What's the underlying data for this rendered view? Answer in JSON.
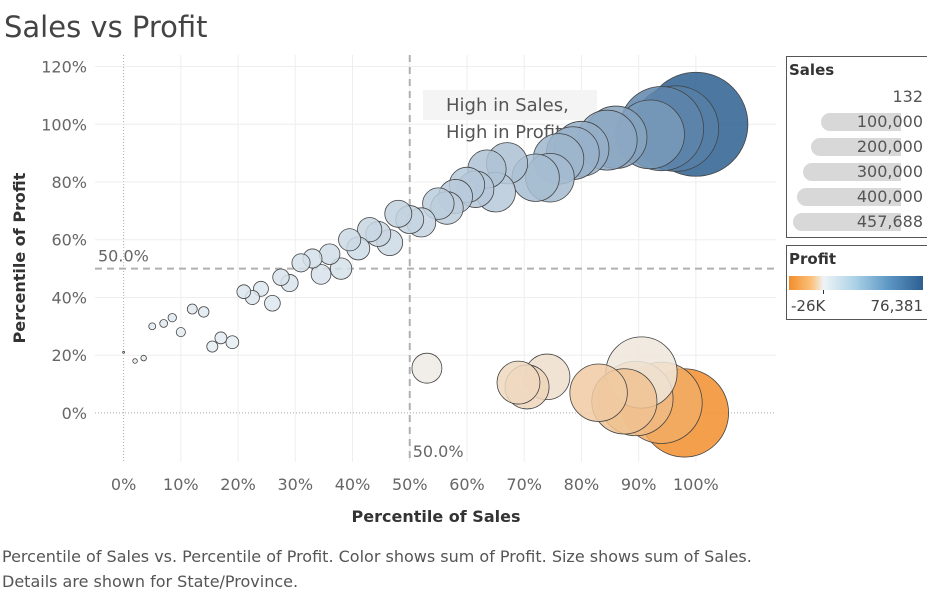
{
  "page": {
    "title": "Sales vs Profit",
    "caption": "Percentile of Sales vs. Percentile of Profit.  Color shows sum of Profit.  Size shows sum of Sales.  Details are shown for State/Province."
  },
  "legend_sales": {
    "title": "Sales",
    "values": [
      "132",
      "100,000",
      "200,000",
      "300,000",
      "400,000",
      "457,688"
    ]
  },
  "legend_profit": {
    "title": "Profit",
    "min_label": "-26K",
    "max_label": "76,381"
  },
  "chart_data": {
    "type": "scatter",
    "xlabel": "Percentile of Sales",
    "ylabel": "Percentile of Profit",
    "x_ticks": [
      "0%",
      "10%",
      "20%",
      "30%",
      "40%",
      "50%",
      "60%",
      "70%",
      "80%",
      "90%",
      "100%"
    ],
    "y_ticks": [
      "0%",
      "20%",
      "40%",
      "60%",
      "80%",
      "100%",
      "120%"
    ],
    "xlim": [
      -0.05,
      1.14
    ],
    "ylim": [
      -0.17,
      1.24
    ],
    "reference_lines": [
      {
        "axis": "x",
        "value": 0.5,
        "label": "50.0%"
      },
      {
        "axis": "y",
        "value": 0.5,
        "label": "50.0%"
      }
    ],
    "annotation": {
      "line1": "High in Sales,",
      "line2": "High in Profit"
    },
    "colors": {
      "negative": "#f28e2b",
      "mid": "#eef4f7",
      "positive": "#2d5f91"
    },
    "points": [
      {
        "x": 0.0,
        "y": 0.21,
        "sales": 132,
        "profit": 10
      },
      {
        "x": 0.02,
        "y": 0.18,
        "sales": 900,
        "profit": 50
      },
      {
        "x": 0.035,
        "y": 0.19,
        "sales": 1300,
        "profit": 80
      },
      {
        "x": 0.05,
        "y": 0.3,
        "sales": 2000,
        "profit": 150
      },
      {
        "x": 0.07,
        "y": 0.31,
        "sales": 2600,
        "profit": 180
      },
      {
        "x": 0.085,
        "y": 0.33,
        "sales": 3000,
        "profit": 200
      },
      {
        "x": 0.1,
        "y": 0.28,
        "sales": 3600,
        "profit": 130
      },
      {
        "x": 0.12,
        "y": 0.36,
        "sales": 4200,
        "profit": 260
      },
      {
        "x": 0.14,
        "y": 0.35,
        "sales": 4700,
        "profit": 230
      },
      {
        "x": 0.155,
        "y": 0.23,
        "sales": 5200,
        "profit": 60
      },
      {
        "x": 0.17,
        "y": 0.26,
        "sales": 6000,
        "profit": 100
      },
      {
        "x": 0.19,
        "y": 0.245,
        "sales": 7000,
        "profit": 90
      },
      {
        "x": 0.21,
        "y": 0.42,
        "sales": 8000,
        "profit": 400
      },
      {
        "x": 0.225,
        "y": 0.4,
        "sales": 8500,
        "profit": 370
      },
      {
        "x": 0.24,
        "y": 0.43,
        "sales": 9500,
        "profit": 430
      },
      {
        "x": 0.26,
        "y": 0.38,
        "sales": 10500,
        "profit": 330
      },
      {
        "x": 0.275,
        "y": 0.47,
        "sales": 11500,
        "profit": 600
      },
      {
        "x": 0.29,
        "y": 0.45,
        "sales": 12500,
        "profit": 560
      },
      {
        "x": 0.31,
        "y": 0.52,
        "sales": 14000,
        "profit": 900
      },
      {
        "x": 0.33,
        "y": 0.535,
        "sales": 15500,
        "profit": 1000
      },
      {
        "x": 0.345,
        "y": 0.48,
        "sales": 16500,
        "profit": 700
      },
      {
        "x": 0.36,
        "y": 0.55,
        "sales": 18000,
        "profit": 1200
      },
      {
        "x": 0.38,
        "y": 0.5,
        "sales": 19500,
        "profit": 900
      },
      {
        "x": 0.395,
        "y": 0.6,
        "sales": 21000,
        "profit": 1800
      },
      {
        "x": 0.41,
        "y": 0.57,
        "sales": 22500,
        "profit": 1500
      },
      {
        "x": 0.43,
        "y": 0.635,
        "sales": 25000,
        "profit": 2200
      },
      {
        "x": 0.445,
        "y": 0.62,
        "sales": 26500,
        "profit": 2000
      },
      {
        "x": 0.465,
        "y": 0.59,
        "sales": 28500,
        "profit": 1700
      },
      {
        "x": 0.48,
        "y": 0.69,
        "sales": 31000,
        "profit": 3000
      },
      {
        "x": 0.5,
        "y": 0.67,
        "sales": 33000,
        "profit": 2700
      },
      {
        "x": 0.52,
        "y": 0.66,
        "sales": 36000,
        "profit": 2600
      },
      {
        "x": 0.53,
        "y": 0.155,
        "sales": 38000,
        "profit": -500
      },
      {
        "x": 0.55,
        "y": 0.725,
        "sales": 42000,
        "profit": 4000
      },
      {
        "x": 0.565,
        "y": 0.71,
        "sales": 45000,
        "profit": 3700
      },
      {
        "x": 0.58,
        "y": 0.75,
        "sales": 49000,
        "profit": 4500
      },
      {
        "x": 0.6,
        "y": 0.79,
        "sales": 53000,
        "profit": 5200
      },
      {
        "x": 0.615,
        "y": 0.775,
        "sales": 57000,
        "profit": 5000
      },
      {
        "x": 0.635,
        "y": 0.845,
        "sales": 62000,
        "profit": 6500
      },
      {
        "x": 0.65,
        "y": 0.765,
        "sales": 67000,
        "profit": 4800
      },
      {
        "x": 0.67,
        "y": 0.865,
        "sales": 72000,
        "profit": 7000
      },
      {
        "x": 0.69,
        "y": 0.105,
        "sales": 78000,
        "profit": -3000
      },
      {
        "x": 0.705,
        "y": 0.09,
        "sales": 82000,
        "profit": -3500
      },
      {
        "x": 0.74,
        "y": 0.125,
        "sales": 88000,
        "profit": -2000
      },
      {
        "x": 0.72,
        "y": 0.815,
        "sales": 95000,
        "profit": 8500
      },
      {
        "x": 0.745,
        "y": 0.815,
        "sales": 100000,
        "profit": 9000
      },
      {
        "x": 0.76,
        "y": 0.88,
        "sales": 108000,
        "profit": 11000
      },
      {
        "x": 0.785,
        "y": 0.9,
        "sales": 118000,
        "profit": 12500
      },
      {
        "x": 0.8,
        "y": 0.915,
        "sales": 128000,
        "profit": 14000
      },
      {
        "x": 0.83,
        "y": 0.07,
        "sales": 140000,
        "profit": -6000
      },
      {
        "x": 0.845,
        "y": 0.945,
        "sales": 152000,
        "profit": 17000
      },
      {
        "x": 0.86,
        "y": 0.955,
        "sales": 165000,
        "profit": 19500
      },
      {
        "x": 0.875,
        "y": 0.04,
        "sales": 180000,
        "profit": -8000
      },
      {
        "x": 0.92,
        "y": 0.965,
        "sales": 200000,
        "profit": 25000
      },
      {
        "x": 0.905,
        "y": 0.14,
        "sales": 215000,
        "profit": -1000
      },
      {
        "x": 0.895,
        "y": 0.05,
        "sales": 235000,
        "profit": -10000
      },
      {
        "x": 0.94,
        "y": 0.035,
        "sales": 280000,
        "profit": -15000
      },
      {
        "x": 0.94,
        "y": 0.985,
        "sales": 300000,
        "profit": 40000
      },
      {
        "x": 0.965,
        "y": 0.985,
        "sales": 310000,
        "profit": 45000
      },
      {
        "x": 0.98,
        "y": 0.0,
        "sales": 330000,
        "profit": -26000
      },
      {
        "x": 1.0,
        "y": 1.0,
        "sales": 457688,
        "profit": 76381
      }
    ]
  }
}
